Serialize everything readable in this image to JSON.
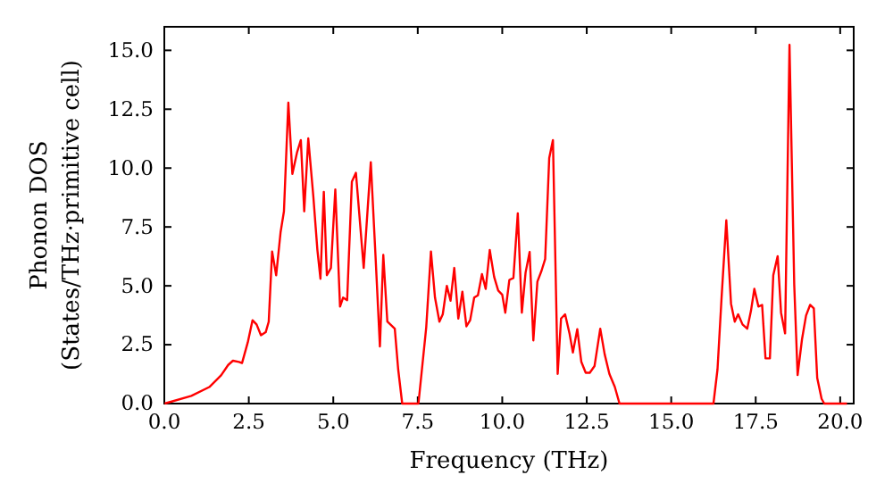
{
  "chart_data": {
    "type": "line",
    "xlabel": "Frequency (THz)",
    "ylabel": "Phonon DOS\n(States/THz·primitive cell)",
    "xlim": [
      0,
      20.4
    ],
    "ylim": [
      0,
      16
    ],
    "xticks": [
      {
        "value": 0,
        "label": "0.0"
      },
      {
        "value": 2.5,
        "label": "2.5"
      },
      {
        "value": 5,
        "label": "5.0"
      },
      {
        "value": 7.5,
        "label": "7.5"
      },
      {
        "value": 10,
        "label": "10.0"
      },
      {
        "value": 12.5,
        "label": "12.5"
      },
      {
        "value": 15,
        "label": "15.0"
      },
      {
        "value": 17.5,
        "label": "17.5"
      },
      {
        "value": 20,
        "label": "20.0"
      }
    ],
    "yticks": [
      {
        "value": 0,
        "label": "0.0"
      },
      {
        "value": 2.5,
        "label": "2.5"
      },
      {
        "value": 5,
        "label": "5.0"
      },
      {
        "value": 7.5,
        "label": "7.5"
      },
      {
        "value": 10,
        "label": "10.0"
      },
      {
        "value": 12.5,
        "label": "12.5"
      },
      {
        "value": 15,
        "label": "15.0"
      }
    ],
    "grid": false,
    "marker": "none",
    "line_style": "solid",
    "series": [
      {
        "color": "#ff0000",
        "x": [
          0.01,
          0.8,
          1.33,
          1.68,
          1.89,
          2.03,
          2.21,
          2.3,
          2.47,
          2.61,
          2.73,
          2.86,
          3.0,
          3.09,
          3.19,
          3.31,
          3.44,
          3.54,
          3.67,
          3.79,
          3.93,
          4.04,
          4.14,
          4.26,
          4.41,
          4.53,
          4.62,
          4.72,
          4.81,
          4.93,
          5.06,
          5.2,
          5.29,
          5.41,
          5.55,
          5.67,
          5.9,
          6.11,
          6.25,
          6.38,
          6.48,
          6.6,
          6.82,
          6.92,
          7.04,
          7.52,
          7.75,
          7.89,
          8.01,
          8.14,
          8.24,
          8.36,
          8.47,
          8.58,
          8.7,
          8.82,
          8.94,
          9.05,
          9.17,
          9.28,
          9.4,
          9.51,
          9.63,
          9.76,
          9.88,
          10.0,
          10.09,
          10.21,
          10.33,
          10.46,
          10.58,
          10.69,
          10.81,
          10.92,
          11.04,
          11.16,
          11.27,
          11.39,
          11.5,
          11.64,
          11.74,
          11.86,
          11.99,
          12.09,
          12.22,
          12.34,
          12.47,
          12.59,
          12.73,
          12.9,
          13.03,
          13.17,
          13.33,
          13.47,
          16.25,
          16.37,
          16.49,
          16.63,
          16.77,
          16.88,
          16.98,
          17.11,
          17.25,
          17.36,
          17.46,
          17.58,
          17.69,
          17.79,
          17.92,
          18.02,
          18.15,
          18.25,
          18.37,
          18.5,
          18.64,
          18.74,
          18.87,
          18.99,
          19.11,
          19.22,
          19.32,
          19.45,
          19.53,
          20.2
        ],
        "values": [
          0,
          0.33,
          0.7,
          1.2,
          1.64,
          1.82,
          1.77,
          1.72,
          2.6,
          3.54,
          3.36,
          2.9,
          3.03,
          3.48,
          6.46,
          5.45,
          7.27,
          8.16,
          12.78,
          9.75,
          10.68,
          11.19,
          8.16,
          11.26,
          8.79,
          6.52,
          5.3,
          8.99,
          5.45,
          5.76,
          9.09,
          4.12,
          4.5,
          4.39,
          9.42,
          9.8,
          5.76,
          10.25,
          6.26,
          2.42,
          6.31,
          3.48,
          3.18,
          1.46,
          0,
          0,
          3.23,
          6.46,
          4.5,
          3.48,
          3.79,
          5.0,
          4.37,
          5.76,
          3.61,
          4.75,
          3.28,
          3.54,
          4.5,
          4.6,
          5.5,
          4.87,
          6.52,
          5.38,
          4.8,
          4.62,
          3.86,
          5.25,
          5.33,
          8.08,
          3.86,
          5.56,
          6.44,
          2.68,
          5.18,
          5.63,
          6.14,
          10.43,
          11.19,
          1.26,
          3.61,
          3.79,
          2.98,
          2.17,
          3.16,
          1.77,
          1.31,
          1.31,
          1.59,
          3.18,
          2.1,
          1.26,
          0.71,
          0,
          0,
          1.46,
          4.5,
          7.78,
          4.24,
          3.48,
          3.79,
          3.36,
          3.18,
          3.94,
          4.87,
          4.12,
          4.19,
          1.92,
          1.92,
          5.45,
          6.26,
          3.86,
          2.98,
          15.23,
          5.05,
          1.21,
          2.73,
          3.74,
          4.19,
          4.04,
          1.09,
          0.2,
          0,
          0
        ]
      }
    ]
  }
}
